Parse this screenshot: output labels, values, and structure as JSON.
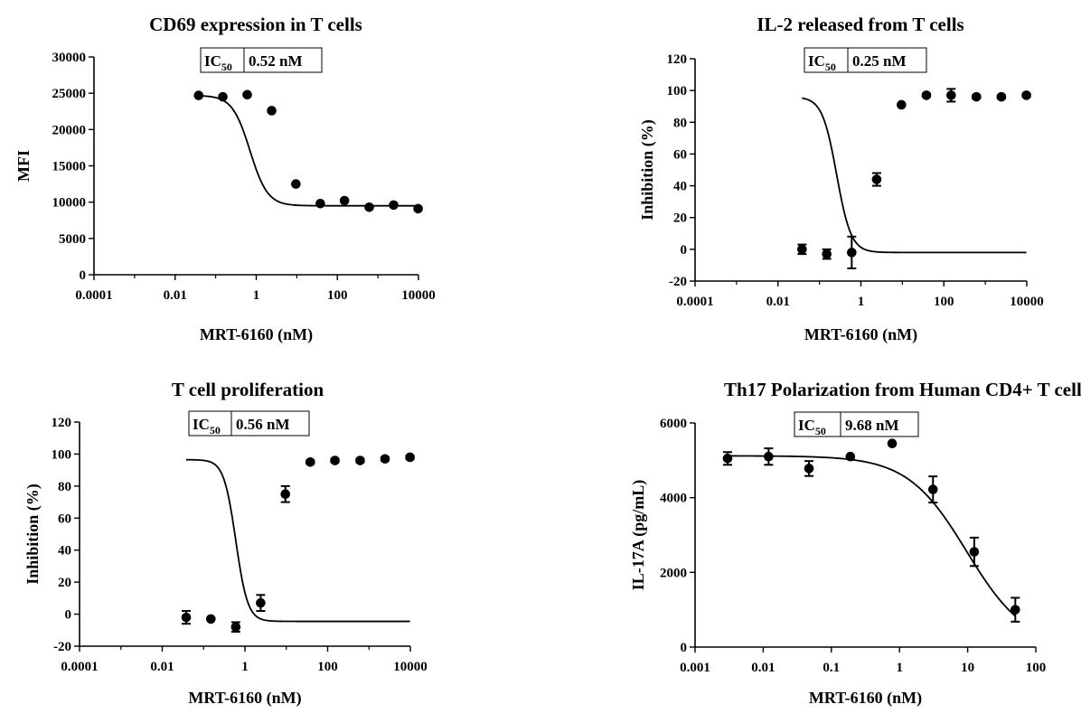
{
  "figure": {
    "chart_data": [
      {
        "type": "scatter",
        "title": "CD69 expression in T cells",
        "xlabel": "MRT-6160 (nM)",
        "ylabel": "MFI",
        "xscale": "log",
        "xlim": [
          0.0001,
          10000
        ],
        "ylim": [
          0,
          30000
        ],
        "xticks": [
          "0.0001",
          "0.01",
          "1",
          "100",
          "10000"
        ],
        "yticks": [
          "0",
          "5000",
          "10000",
          "15000",
          "20000",
          "25000",
          "30000"
        ],
        "ic50": {
          "label_main": "IC",
          "label_sub": "50",
          "value": "0.52 nM"
        },
        "fit": {
          "top": 24700,
          "bottom": 9500,
          "ec50": 0.7,
          "hill": 2.0
        },
        "x": [
          0.038,
          0.15,
          0.6,
          2.4,
          9.5,
          38,
          150,
          610,
          2440,
          9800
        ],
        "y": [
          24700,
          24500,
          24800,
          22600,
          12500,
          9800,
          10200,
          9300,
          9600,
          9100
        ],
        "err": [
          0,
          0,
          0,
          0,
          0,
          0,
          0,
          0,
          0,
          0
        ],
        "grid": false,
        "legend": "none"
      },
      {
        "type": "scatter",
        "title": "IL-2 released from T cells",
        "xlabel": "MRT-6160 (nM)",
        "ylabel": "Inhibition (%)",
        "xscale": "log",
        "xlim": [
          0.0001,
          10000
        ],
        "ylim": [
          -20,
          120
        ],
        "xticks": [
          "0.0001",
          "0.01",
          "1",
          "100",
          "10000"
        ],
        "yticks": [
          "-20",
          "0",
          "20",
          "40",
          "60",
          "80",
          "100",
          "120"
        ],
        "ic50": {
          "label_main": "IC",
          "label_sub": "50",
          "value": "0.25 nM"
        },
        "fit": {
          "top": 96,
          "bottom": -2,
          "ec50": 0.26,
          "hill": 2.5
        },
        "x": [
          0.038,
          0.15,
          0.6,
          2.4,
          9.5,
          38,
          150,
          610,
          2440,
          9800
        ],
        "y": [
          0,
          -3,
          -2,
          44,
          91,
          97,
          97,
          96,
          96,
          97
        ],
        "err": [
          3,
          3,
          10,
          4,
          0,
          1,
          4,
          1,
          1,
          1
        ],
        "grid": false,
        "legend": "none"
      },
      {
        "type": "scatter",
        "title": "T cell proliferation",
        "xlabel": "MRT-6160 (nM)",
        "ylabel": "Inhibition (%)",
        "xscale": "log",
        "xlim": [
          0.0001,
          10000
        ],
        "ylim": [
          -20,
          120
        ],
        "xticks": [
          "0.0001",
          "0.01",
          "1",
          "100",
          "10000"
        ],
        "yticks": [
          "-20",
          "0",
          "20",
          "40",
          "60",
          "80",
          "100",
          "120"
        ],
        "ic50": {
          "label_main": "IC",
          "label_sub": "50",
          "value": "0.56 nM"
        },
        "fit": {
          "top": 96.5,
          "bottom": -4.5,
          "ec50": 0.6,
          "hill": 3.0
        },
        "x": [
          0.038,
          0.15,
          0.6,
          2.4,
          9.5,
          38,
          150,
          610,
          2440,
          9800
        ],
        "y": [
          -2,
          -3,
          -8,
          7,
          75,
          95,
          96,
          96,
          97,
          98
        ],
        "err": [
          4,
          0,
          3,
          5,
          5,
          1,
          1,
          1,
          1,
          1
        ],
        "grid": false,
        "legend": "none"
      },
      {
        "type": "scatter",
        "title": "Th17 Polarization from Human CD4+ T cells",
        "xlabel": "MRT-6160 (nM)",
        "ylabel": "IL-17A (pg/mL)",
        "xscale": "log",
        "xlim": [
          0.001,
          100
        ],
        "ylim": [
          0,
          6000
        ],
        "xticks": [
          "0.001",
          "0.01",
          "0.1",
          "1",
          "10",
          "100"
        ],
        "yticks": [
          "0",
          "2000",
          "4000",
          "6000"
        ],
        "ic50": {
          "label_main": "IC",
          "label_sub": "50",
          "value": "9.68 nM"
        },
        "fit": {
          "top": 5120,
          "bottom": 0,
          "ec50": 9.68,
          "hill": 1.0
        },
        "x": [
          0.003,
          0.012,
          0.047,
          0.19,
          0.78,
          3.1,
          12.5,
          50
        ],
        "y": [
          5050,
          5100,
          4780,
          5100,
          5450,
          4220,
          2550,
          1000
        ],
        "err": [
          170,
          220,
          200,
          0,
          0,
          350,
          380,
          320
        ],
        "grid": false,
        "legend": "none"
      }
    ]
  }
}
